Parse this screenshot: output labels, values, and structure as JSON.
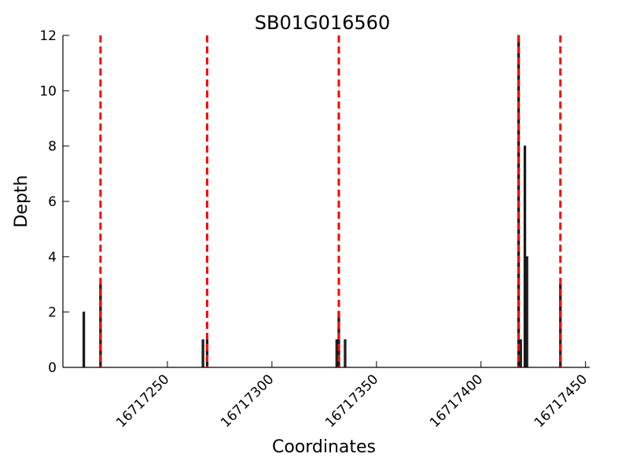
{
  "chart_data": {
    "type": "bar",
    "title": "SB01G016560",
    "xlabel": "Coordinates",
    "ylabel": "Depth",
    "xlim": [
      16717200,
      16717452
    ],
    "ylim": [
      0,
      12
    ],
    "xticks": [
      16717250,
      16717300,
      16717350,
      16717400,
      16717450
    ],
    "xtick_labels": [
      "16717250",
      "16717300",
      "16717350",
      "16717400",
      "16717450"
    ],
    "yticks": [
      0,
      2,
      4,
      6,
      8,
      10,
      12
    ],
    "ytick_labels": [
      "0",
      "2",
      "4",
      "6",
      "8",
      "10",
      "12"
    ],
    "bar_color": "#2b2b2b",
    "series": [
      {
        "x": [
          16717210,
          16717218,
          16717267,
          16717269,
          16717331,
          16717332,
          16717335,
          16717418,
          16717419,
          16717421,
          16717422,
          16717438
        ],
        "values": [
          2,
          3,
          1,
          1,
          1,
          2,
          1,
          12,
          1,
          8,
          4,
          3
        ]
      }
    ],
    "reference_lines": {
      "color": "#ff0000",
      "style": "dashed",
      "x": [
        16717218,
        16717269,
        16717332,
        16717418,
        16717438
      ]
    },
    "grid": false,
    "legend": "none"
  }
}
